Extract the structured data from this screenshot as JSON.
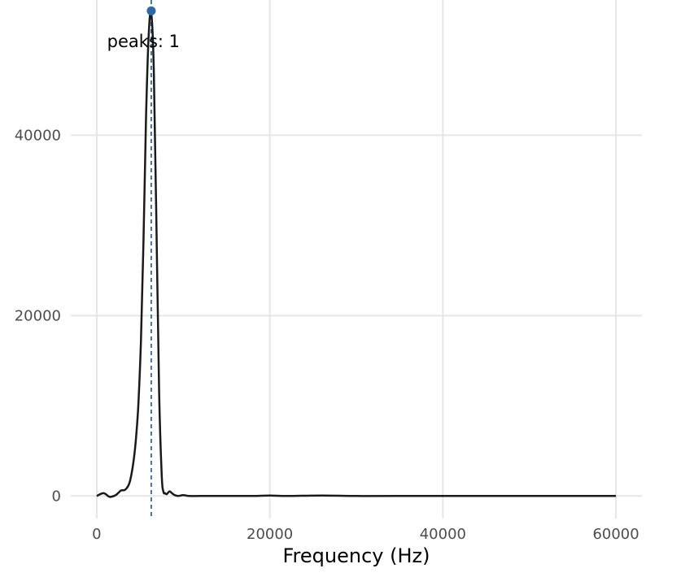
{
  "chart_data": {
    "type": "line",
    "xlabel": "Frequency (Hz)",
    "ylabel": "",
    "xlim": [
      -3000,
      63000
    ],
    "ylim": [
      -2500,
      55000
    ],
    "x_ticks": [
      0,
      20000,
      40000,
      60000
    ],
    "x_tick_labels": [
      "0",
      "20000",
      "40000",
      "60000"
    ],
    "y_ticks": [
      0,
      20000,
      40000
    ],
    "y_tick_labels": [
      "0",
      "20000",
      "40000"
    ],
    "grid": true,
    "series": [
      {
        "color": "#1a1a1a",
        "x": [
          0,
          800,
          1500,
          2200,
          2800,
          3300,
          3800,
          4200,
          4500,
          4800,
          5100,
          5400,
          5700,
          6000,
          6300,
          6600,
          6900,
          7200,
          7500,
          7700,
          7900,
          8100,
          8400,
          8700,
          9000,
          9400,
          10000,
          10600,
          12000,
          15000,
          18000,
          20000,
          22000,
          26000,
          30000,
          35000,
          40000,
          45000,
          50000,
          55000,
          60000
        ],
        "y": [
          0,
          300,
          -100,
          100,
          600,
          700,
          1500,
          3500,
          6000,
          10000,
          17000,
          28000,
          42000,
          51000,
          53500,
          47000,
          30000,
          12000,
          2500,
          500,
          300,
          200,
          500,
          300,
          100,
          0,
          100,
          0,
          0,
          0,
          0,
          50,
          0,
          50,
          0,
          0,
          0,
          0,
          0,
          0,
          0
        ]
      }
    ],
    "peaks": [
      {
        "x": 6300,
        "y": 53800
      }
    ],
    "peak_line_x": 6300,
    "peak_color": "#2c6aa6",
    "annotation": {
      "text": "peaks: 1",
      "x": 1200,
      "y": 50500
    }
  }
}
